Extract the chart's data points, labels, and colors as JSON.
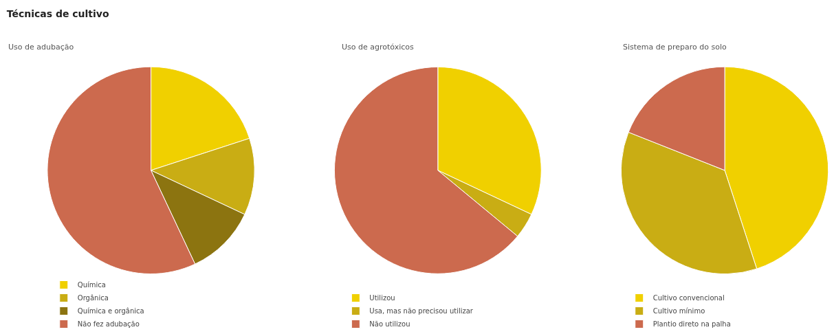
{
  "chart_data": [
    {
      "type": "pie",
      "title": "Técnicas de cultivo",
      "subtitle": "Uso de adubação",
      "categories": [
        "Química",
        "Orgânica",
        "Química e orgânica",
        "Não fez adubação"
      ],
      "values": [
        20,
        12,
        11,
        57
      ],
      "colors": [
        "#f0d000",
        "#c9ad14",
        "#8c7410",
        "#cc6a4e"
      ],
      "legend": "bottom"
    },
    {
      "type": "pie",
      "subtitle": "Uso de agrotóxicos",
      "categories": [
        "Utilizou",
        "Usa, mas não precisou utilizar",
        "Não utilizou"
      ],
      "values": [
        32,
        4,
        64
      ],
      "colors": [
        "#f0d000",
        "#c9ad14",
        "#cc6a4e"
      ],
      "legend": "bottom"
    },
    {
      "type": "pie",
      "subtitle": "Sistema de preparo do solo",
      "categories": [
        "Cultivo convencional",
        "Cultivo mínimo",
        "Plantio direto na palha"
      ],
      "values": [
        45,
        36,
        19
      ],
      "colors": [
        "#f0d000",
        "#c9ad14",
        "#cc6a4e"
      ],
      "legend": "bottom"
    }
  ]
}
